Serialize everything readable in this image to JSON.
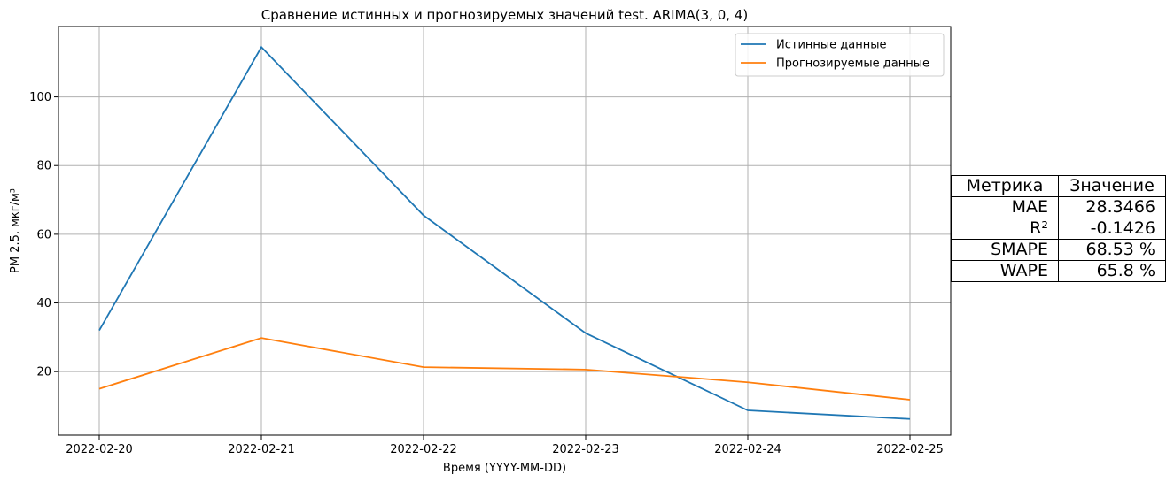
{
  "chart_data": {
    "type": "line",
    "title": "Сравнение истинных и прогнозируемых значений test. ARIMA(3, 0, 4)",
    "xlabel": "Время (YYYY-MM-DD)",
    "ylabel": "PM 2.5, мкг/м³",
    "x": [
      "2022-02-20",
      "2022-02-21",
      "2022-02-22",
      "2022-02-23",
      "2022-02-24",
      "2022-02-25"
    ],
    "yticks": [
      20,
      40,
      60,
      80,
      100
    ],
    "ylim": [
      1.5,
      120.5
    ],
    "grid": true,
    "legend_position": "top-right",
    "series": [
      {
        "name": "Истинные данные",
        "color": "#1f77b4",
        "values": [
          32,
          114.5,
          65.5,
          31.2,
          8.7,
          6.2
        ]
      },
      {
        "name": "Прогнозируемые данные",
        "color": "#ff7f0e",
        "values": [
          15,
          29.8,
          21.3,
          20.6,
          16.9,
          11.8
        ]
      }
    ]
  },
  "metrics_table": {
    "headers": [
      "Метрика",
      "Значение"
    ],
    "rows": [
      {
        "name": "MAE",
        "value": "28.3466"
      },
      {
        "name": "R²",
        "value": "-0.1426"
      },
      {
        "name": "SMAPE",
        "value": "68.53 %"
      },
      {
        "name": "WAPE",
        "value": "65.8 %"
      }
    ]
  }
}
